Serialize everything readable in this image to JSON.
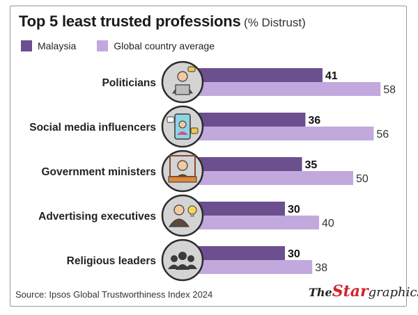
{
  "title": "Top 5 least trusted professions",
  "subtitle": "(% Distrust)",
  "source": "Source: Ipsos Global Trustworthiness Index 2024",
  "brand": {
    "the": "The",
    "star": "Star",
    "graphics": "graphics"
  },
  "colors": {
    "malaysia": "#6b4f8e",
    "global": "#c1a9dd",
    "icon_bg": "#d4d4d4",
    "icon_border": "#2b2b2b"
  },
  "chart_data": {
    "type": "bar",
    "orientation": "horizontal",
    "title": "Top 5 least trusted professions",
    "subtitle": "(% Distrust)",
    "categories": [
      "Politicians",
      "Social media influencers",
      "Government ministers",
      "Advertising executives",
      "Religious leaders"
    ],
    "icons": [
      "politician-icon",
      "influencer-icon",
      "minister-icon",
      "advertising-executive-icon",
      "group-icon"
    ],
    "series": [
      {
        "name": "Malaysia",
        "values": [
          41,
          36,
          35,
          30,
          30
        ]
      },
      {
        "name": "Global country average",
        "values": [
          58,
          56,
          50,
          40,
          38
        ]
      }
    ],
    "xlim": [
      0,
      60
    ],
    "legend": "top-left",
    "grid": false
  }
}
